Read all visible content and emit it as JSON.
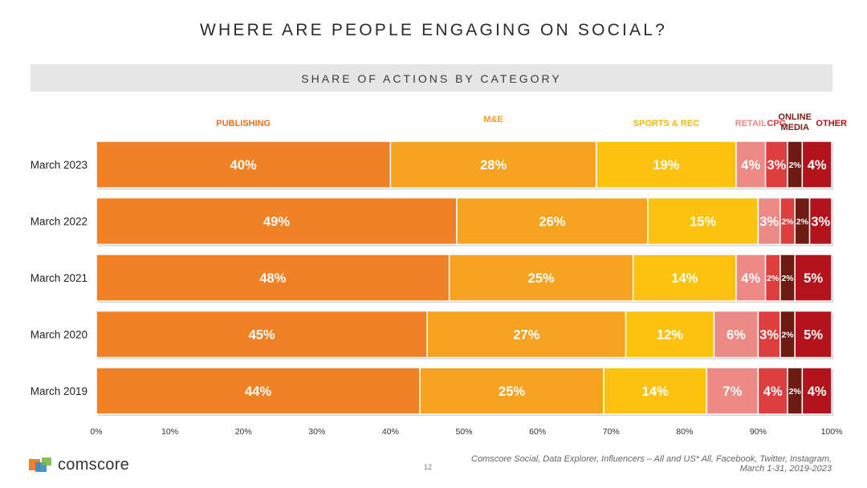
{
  "page": {
    "title": "WHERE ARE PEOPLE ENGAGING ON SOCIAL?",
    "subtitle": "SHARE OF ACTIONS BY CATEGORY",
    "logo_text": "comscore",
    "page_number": "12",
    "source_line1": "Comscore Social, Data Explorer, Influencers – All and US* All, Facebook, Twitter, Instagram,",
    "source_line2": "March 1-31, 2019-2023"
  },
  "chart_data": {
    "type": "bar",
    "orientation": "horizontal",
    "stacked": true,
    "categories": [
      "March 2023",
      "March 2022",
      "March 2021",
      "March 2020",
      "March 2019"
    ],
    "series": [
      {
        "name": "PUBLISHING",
        "color": "#f08125",
        "label_color": "#e8701e",
        "values": [
          40,
          49,
          48,
          45,
          44
        ]
      },
      {
        "name": "M&E",
        "color": "#f6a31f",
        "label_color": "#f39c1d",
        "values": [
          28,
          26,
          25,
          27,
          25
        ]
      },
      {
        "name": "SPORTS & REC",
        "color": "#fdc210",
        "label_color": "#f5b900",
        "values": [
          19,
          15,
          14,
          12,
          14
        ]
      },
      {
        "name": "RETAIL",
        "color": "#ee8a86",
        "label_color": "#ee8a86",
        "values": [
          4,
          3,
          4,
          6,
          7
        ]
      },
      {
        "name": "CPG",
        "color": "#df3e3e",
        "label_color": "#d93a3a",
        "values": [
          3,
          2,
          2,
          3,
          4
        ]
      },
      {
        "name": "ONLINE MEDIA",
        "color": "#6e1b14",
        "label_color": "#7a1c16",
        "values": [
          2,
          2,
          2,
          2,
          2
        ]
      },
      {
        "name": "OTHER",
        "color": "#b3131a",
        "label_color": "#b01218",
        "values": [
          4,
          3,
          5,
          5,
          4
        ]
      }
    ],
    "xlim": [
      0,
      100
    ],
    "x_ticks": [
      "0%",
      "10%",
      "20%",
      "30%",
      "40%",
      "50%",
      "60%",
      "70%",
      "80%",
      "90%",
      "100%"
    ],
    "value_suffix": "%",
    "legend_position": "top, above each segment"
  }
}
